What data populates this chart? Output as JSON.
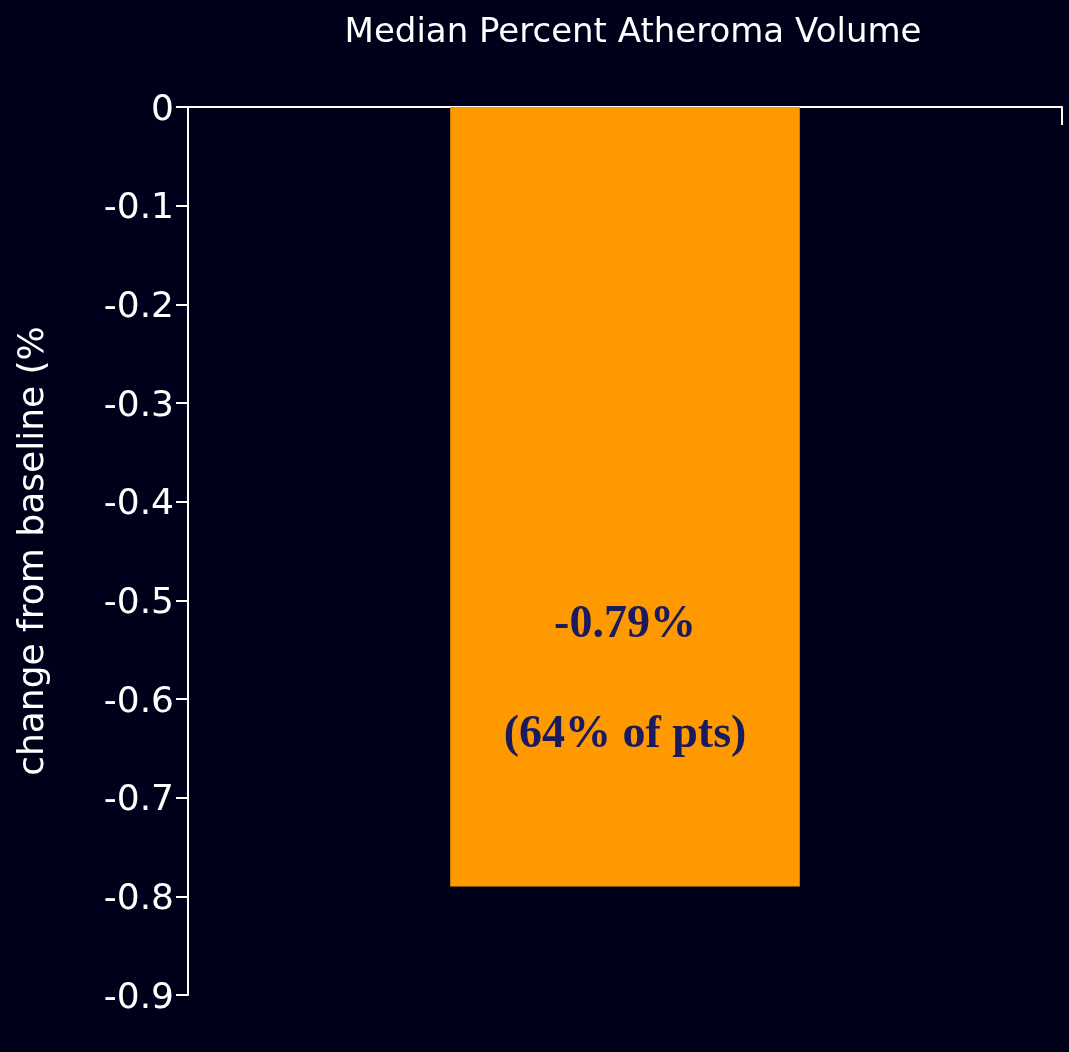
{
  "chart_data": {
    "type": "bar",
    "title": "Median Percent Atheroma Volume",
    "ylabel": "change from baseline (%",
    "categories": [
      null
    ],
    "values": [
      -0.79
    ],
    "color": "#ff9900",
    "value_labels": [
      "-0.79%"
    ],
    "annotations": [
      "(64% of pts)"
    ],
    "ylim": [
      -0.9,
      0
    ],
    "yticks": [
      0,
      -0.1,
      -0.2,
      -0.3,
      -0.4,
      -0.5,
      -0.6,
      -0.7,
      -0.8,
      -0.9
    ],
    "grid": false
  }
}
